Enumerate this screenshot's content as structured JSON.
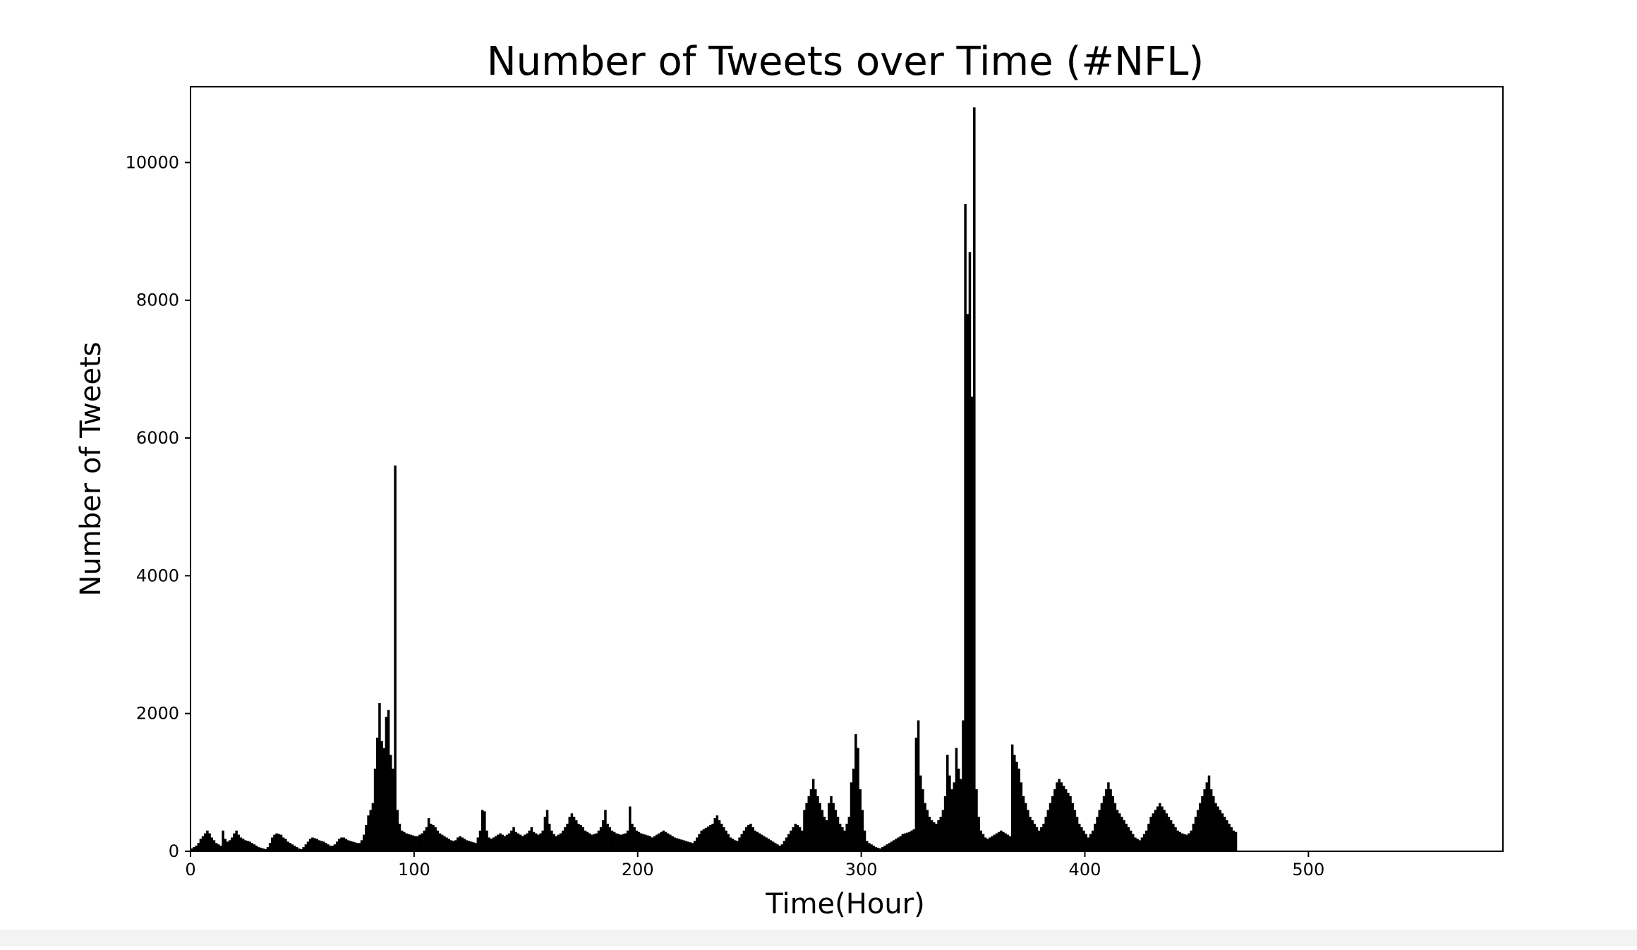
{
  "chart_data": {
    "type": "bar",
    "title": "Number of Tweets over Time (#NFL)",
    "xlabel": "Time(Hour)",
    "ylabel": "Number of Tweets",
    "xlim": [
      0,
      587
    ],
    "ylim": [
      0,
      11100
    ],
    "xticks": [
      0,
      100,
      200,
      300,
      400,
      500
    ],
    "yticks": [
      0,
      2000,
      4000,
      6000,
      8000,
      10000
    ],
    "grid": false,
    "legend": "none",
    "bar_color": "#000000",
    "series": [
      {
        "x_start": 0,
        "x_step": 1,
        "values": [
          40,
          60,
          80,
          120,
          180,
          220,
          260,
          300,
          260,
          200,
          160,
          120,
          100,
          80,
          300,
          180,
          140,
          160,
          200,
          260,
          300,
          240,
          200,
          180,
          160,
          150,
          140,
          120,
          100,
          80,
          60,
          50,
          40,
          30,
          60,
          120,
          200,
          240,
          260,
          250,
          240,
          200,
          180,
          140,
          120,
          100,
          80,
          60,
          40,
          30,
          60,
          100,
          140,
          180,
          200,
          190,
          180,
          160,
          150,
          140,
          120,
          100,
          80,
          80,
          100,
          140,
          180,
          200,
          200,
          180,
          160,
          150,
          140,
          130,
          120,
          120,
          160,
          240,
          380,
          520,
          600,
          700,
          1200,
          1650,
          2150,
          1600,
          1500,
          1950,
          2050,
          1400,
          1200,
          5600,
          600,
          400,
          300,
          280,
          260,
          250,
          240,
          230,
          220,
          220,
          240,
          260,
          300,
          350,
          480,
          400,
          380,
          350,
          300,
          260,
          240,
          220,
          200,
          180,
          160,
          150,
          160,
          200,
          220,
          200,
          180,
          160,
          150,
          140,
          130,
          120,
          200,
          300,
          600,
          580,
          300,
          200,
          180,
          200,
          220,
          240,
          260,
          240,
          220,
          240,
          260,
          300,
          350,
          280,
          260,
          240,
          220,
          240,
          260,
          300,
          350,
          280,
          260,
          240,
          260,
          300,
          500,
          600,
          400,
          300,
          250,
          220,
          240,
          260,
          300,
          350,
          400,
          500,
          550,
          500,
          450,
          400,
          380,
          350,
          300,
          280,
          260,
          240,
          250,
          260,
          300,
          350,
          450,
          600,
          400,
          350,
          300,
          280,
          260,
          250,
          240,
          250,
          260,
          300,
          650,
          400,
          350,
          300,
          280,
          260,
          250,
          240,
          230,
          220,
          200,
          220,
          240,
          260,
          280,
          300,
          280,
          260,
          240,
          220,
          200,
          190,
          180,
          170,
          160,
          150,
          140,
          130,
          120,
          150,
          200,
          250,
          300,
          320,
          340,
          360,
          380,
          400,
          480,
          520,
          450,
          400,
          350,
          300,
          250,
          200,
          180,
          160,
          150,
          200,
          250,
          300,
          350,
          380,
          400,
          350,
          300,
          280,
          260,
          240,
          220,
          200,
          180,
          160,
          140,
          120,
          100,
          80,
          100,
          150,
          200,
          250,
          300,
          350,
          400,
          380,
          350,
          300,
          600,
          700,
          800,
          900,
          1050,
          900,
          800,
          700,
          600,
          500,
          450,
          700,
          800,
          700,
          600,
          500,
          400,
          350,
          300,
          400,
          500,
          1000,
          1200,
          1700,
          1500,
          900,
          600,
          300,
          150,
          120,
          100,
          80,
          60,
          50,
          40,
          60,
          80,
          100,
          120,
          140,
          160,
          180,
          200,
          220,
          250,
          260,
          270,
          280,
          300,
          320,
          1650,
          1900,
          1100,
          900,
          700,
          600,
          500,
          450,
          420,
          400,
          450,
          500,
          600,
          800,
          1400,
          1100,
          900,
          1000,
          1500,
          1200,
          1050,
          1900,
          9400,
          7800,
          8700,
          6600,
          10800,
          900,
          500,
          300,
          250,
          200,
          180,
          200,
          220,
          240,
          260,
          280,
          300,
          280,
          260,
          240,
          220,
          1550,
          1400,
          1300,
          1200,
          1000,
          800,
          700,
          600,
          500,
          450,
          400,
          350,
          300,
          350,
          400,
          500,
          600,
          700,
          800,
          900,
          1000,
          1050,
          1000,
          950,
          900,
          850,
          800,
          700,
          600,
          500,
          400,
          350,
          300,
          250,
          200,
          250,
          300,
          400,
          500,
          600,
          700,
          800,
          900,
          1000,
          900,
          800,
          700,
          600,
          550,
          500,
          450,
          400,
          350,
          300,
          250,
          200,
          180,
          160,
          200,
          250,
          300,
          400,
          500,
          550,
          600,
          650,
          700,
          650,
          600,
          550,
          500,
          450,
          400,
          350,
          300,
          280,
          260,
          250,
          240,
          260,
          300,
          400,
          500,
          600,
          700,
          800,
          900,
          1000,
          1100,
          900,
          800,
          700,
          650,
          600,
          550,
          500,
          450,
          400,
          350,
          300,
          280
        ]
      }
    ]
  }
}
